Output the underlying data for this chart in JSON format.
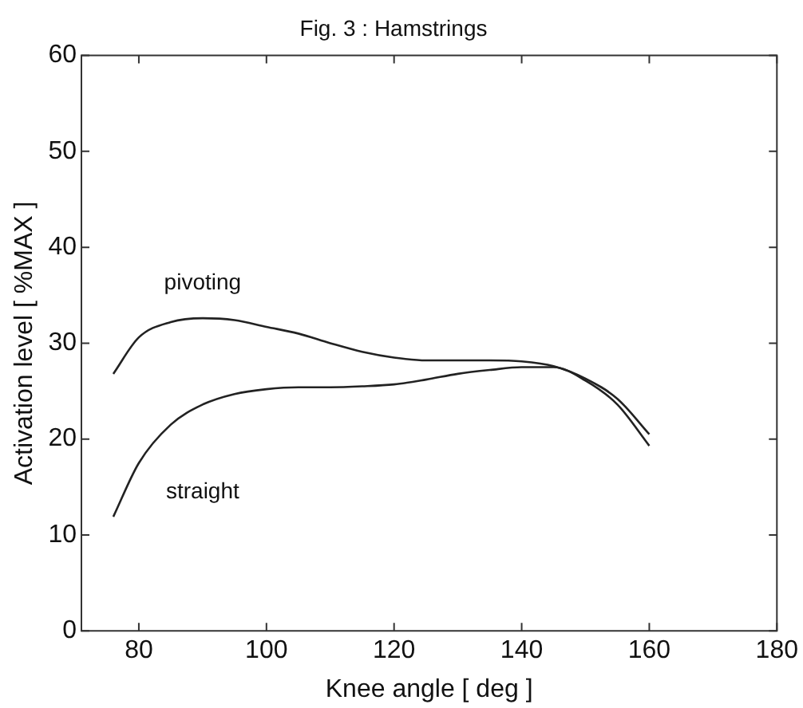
{
  "chart_data": {
    "type": "line",
    "title": "Fig. 3 : Hamstrings",
    "xlabel": "Knee angle [ deg ]",
    "ylabel": "Activation level [ %MAX ]",
    "x": [
      76,
      80,
      85,
      90,
      95,
      100,
      105,
      110,
      115,
      120,
      125,
      130,
      135,
      140,
      145,
      150,
      155,
      160
    ],
    "series": [
      {
        "name": "pivoting",
        "color": "#222222",
        "values": [
          26.8,
          30.6,
          32.2,
          32.6,
          32.4,
          31.7,
          31,
          30,
          29.1,
          28.5,
          28.2,
          28.2,
          28.2,
          28.1,
          27.6,
          26.3,
          24.2,
          20.5
        ]
      },
      {
        "name": "straight",
        "color": "#222222",
        "values": [
          11.9,
          17.5,
          21.5,
          23.6,
          24.7,
          25.2,
          25.4,
          25.4,
          25.5,
          25.7,
          26.2,
          26.8,
          27.2,
          27.5,
          27.5,
          26.1,
          23.6,
          19.3
        ]
      }
    ],
    "xlim": [
      71,
      180
    ],
    "xticks": [
      80,
      100,
      120,
      140,
      160,
      180
    ],
    "ylim": [
      0,
      60
    ],
    "yticks": [
      0,
      10,
      20,
      30,
      40,
      50,
      60
    ],
    "grid": false,
    "legend": false,
    "marker": "none",
    "line_style": "solid"
  }
}
